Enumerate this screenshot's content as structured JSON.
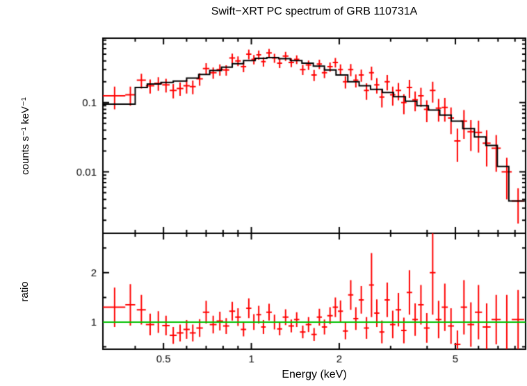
{
  "chart_data": {
    "type": "scatter",
    "title": "Swift−XRT PC spectrum of GRB 110731A",
    "xlabel": "Energy (keV)",
    "x_scale": "log",
    "x_range": [
      0.31,
      8.7
    ],
    "x_ticks": [
      {
        "value": 0.5,
        "label": "0.5"
      },
      {
        "value": 1,
        "label": "1"
      },
      {
        "value": 2,
        "label": "2"
      },
      {
        "value": 5,
        "label": "5"
      }
    ],
    "x_minor_ticks": [
      0.4,
      0.6,
      0.7,
      0.8,
      0.9,
      3,
      4,
      6,
      7,
      8
    ],
    "panels": {
      "spectrum": {
        "ylabel": "counts s⁻¹ keV⁻¹",
        "y_scale": "log",
        "y_range": [
          0.0013,
          0.85
        ],
        "y_ticks": [
          {
            "value": 0.1,
            "label": "0.1"
          },
          {
            "value": 0.01,
            "label": "0.01"
          }
        ]
      },
      "ratio": {
        "ylabel": "ratio",
        "y_scale": "linear",
        "y_range": [
          0.45,
          2.8
        ],
        "y_ticks": [
          {
            "value": 1,
            "label": "1"
          },
          {
            "value": 2,
            "label": "2"
          }
        ],
        "y_minor_ticks": [
          0.5,
          1.5,
          2.5
        ],
        "reference_line": 1
      }
    },
    "colors": {
      "data": "#ff0000",
      "model": "#000000",
      "reference_line": "#00c000",
      "frame": "#000000",
      "background": "#ffffff"
    },
    "model_steps": [
      [
        0.31,
        0.4,
        0.095
      ],
      [
        0.4,
        0.44,
        0.165
      ],
      [
        0.44,
        0.49,
        0.185
      ],
      [
        0.49,
        0.54,
        0.195
      ],
      [
        0.54,
        0.6,
        0.205
      ],
      [
        0.6,
        0.66,
        0.225
      ],
      [
        0.66,
        0.72,
        0.255
      ],
      [
        0.72,
        0.79,
        0.29
      ],
      [
        0.79,
        0.86,
        0.325
      ],
      [
        0.86,
        0.94,
        0.365
      ],
      [
        0.94,
        1.03,
        0.405
      ],
      [
        1.03,
        1.13,
        0.435
      ],
      [
        1.13,
        1.24,
        0.445
      ],
      [
        1.24,
        1.36,
        0.43
      ],
      [
        1.36,
        1.49,
        0.405
      ],
      [
        1.49,
        1.63,
        0.37
      ],
      [
        1.63,
        1.78,
        0.335
      ],
      [
        1.78,
        1.95,
        0.295
      ],
      [
        1.95,
        2.14,
        0.25
      ],
      [
        2.14,
        2.34,
        0.2
      ],
      [
        2.34,
        2.56,
        0.175
      ],
      [
        2.56,
        2.81,
        0.155
      ],
      [
        2.81,
        3.07,
        0.14
      ],
      [
        3.07,
        3.37,
        0.122
      ],
      [
        3.37,
        3.69,
        0.105
      ],
      [
        3.69,
        4.04,
        0.09
      ],
      [
        4.04,
        4.42,
        0.078
      ],
      [
        4.42,
        4.84,
        0.066
      ],
      [
        4.84,
        5.3,
        0.054
      ],
      [
        5.3,
        5.81,
        0.042
      ],
      [
        5.81,
        6.36,
        0.032
      ],
      [
        6.36,
        6.96,
        0.024
      ],
      [
        6.96,
        7.62,
        0.012
      ],
      [
        7.62,
        8.7,
        0.0038
      ]
    ],
    "spectrum_points": [
      [
        0.34,
        0.03,
        0.125,
        0.045
      ],
      [
        0.385,
        0.015,
        0.13,
        0.04
      ],
      [
        0.42,
        0.015,
        0.21,
        0.05
      ],
      [
        0.45,
        0.015,
        0.175,
        0.04
      ],
      [
        0.48,
        0.015,
        0.19,
        0.042
      ],
      [
        0.51,
        0.015,
        0.18,
        0.04
      ],
      [
        0.54,
        0.015,
        0.15,
        0.035
      ],
      [
        0.57,
        0.015,
        0.16,
        0.035
      ],
      [
        0.6,
        0.015,
        0.175,
        0.04
      ],
      [
        0.63,
        0.015,
        0.17,
        0.038
      ],
      [
        0.665,
        0.017,
        0.22,
        0.045
      ],
      [
        0.7,
        0.018,
        0.31,
        0.06
      ],
      [
        0.74,
        0.02,
        0.27,
        0.05
      ],
      [
        0.78,
        0.02,
        0.3,
        0.055
      ],
      [
        0.82,
        0.02,
        0.295,
        0.05
      ],
      [
        0.86,
        0.02,
        0.44,
        0.07
      ],
      [
        0.9,
        0.02,
        0.4,
        0.065
      ],
      [
        0.94,
        0.02,
        0.33,
        0.055
      ],
      [
        0.98,
        0.02,
        0.5,
        0.08
      ],
      [
        1.02,
        0.02,
        0.42,
        0.065
      ],
      [
        1.06,
        0.02,
        0.49,
        0.075
      ],
      [
        1.1,
        0.02,
        0.39,
        0.06
      ],
      [
        1.15,
        0.025,
        0.52,
        0.075
      ],
      [
        1.2,
        0.025,
        0.44,
        0.065
      ],
      [
        1.25,
        0.025,
        0.37,
        0.055
      ],
      [
        1.31,
        0.03,
        0.47,
        0.07
      ],
      [
        1.37,
        0.03,
        0.38,
        0.055
      ],
      [
        1.43,
        0.03,
        0.42,
        0.06
      ],
      [
        1.5,
        0.033,
        0.3,
        0.05
      ],
      [
        1.57,
        0.035,
        0.35,
        0.055
      ],
      [
        1.64,
        0.035,
        0.25,
        0.045
      ],
      [
        1.71,
        0.035,
        0.36,
        0.055
      ],
      [
        1.78,
        0.037,
        0.27,
        0.045
      ],
      [
        1.86,
        0.04,
        0.33,
        0.05
      ],
      [
        1.94,
        0.04,
        0.38,
        0.06
      ],
      [
        2.02,
        0.04,
        0.3,
        0.055
      ],
      [
        2.1,
        0.042,
        0.2,
        0.04
      ],
      [
        2.19,
        0.045,
        0.3,
        0.06
      ],
      [
        2.28,
        0.045,
        0.21,
        0.045
      ],
      [
        2.38,
        0.048,
        0.25,
        0.05
      ],
      [
        2.48,
        0.05,
        0.15,
        0.04
      ],
      [
        2.58,
        0.05,
        0.27,
        0.06
      ],
      [
        2.69,
        0.055,
        0.18,
        0.045
      ],
      [
        2.8,
        0.055,
        0.12,
        0.035
      ],
      [
        2.92,
        0.06,
        0.2,
        0.05
      ],
      [
        3.05,
        0.065,
        0.13,
        0.04
      ],
      [
        3.19,
        0.07,
        0.15,
        0.042
      ],
      [
        3.33,
        0.07,
        0.1,
        0.032
      ],
      [
        3.48,
        0.075,
        0.165,
        0.048
      ],
      [
        3.64,
        0.08,
        0.11,
        0.035
      ],
      [
        3.81,
        0.085,
        0.125,
        0.038
      ],
      [
        3.99,
        0.09,
        0.08,
        0.028
      ],
      [
        4.18,
        0.095,
        0.15,
        0.05
      ],
      [
        4.38,
        0.1,
        0.083,
        0.03
      ],
      [
        4.6,
        0.11,
        0.085,
        0.032
      ],
      [
        4.83,
        0.115,
        0.06,
        0.025
      ],
      [
        5.08,
        0.125,
        0.028,
        0.014
      ],
      [
        5.35,
        0.135,
        0.054,
        0.024
      ],
      [
        5.65,
        0.15,
        0.038,
        0.018
      ],
      [
        6.0,
        0.17,
        0.037,
        0.018
      ],
      [
        6.4,
        0.2,
        0.026,
        0.014
      ],
      [
        6.9,
        0.25,
        0.022,
        0.012
      ],
      [
        7.5,
        0.3,
        0.01,
        0.006
      ],
      [
        8.2,
        0.4,
        0.0038,
        0.002
      ]
    ],
    "ratio_points": [
      [
        0.34,
        0.03,
        1.3,
        0.4
      ],
      [
        0.385,
        0.015,
        1.35,
        0.42
      ],
      [
        0.42,
        0.015,
        1.25,
        0.3
      ],
      [
        0.45,
        0.015,
        0.95,
        0.22
      ],
      [
        0.48,
        0.015,
        1.0,
        0.22
      ],
      [
        0.51,
        0.015,
        0.93,
        0.2
      ],
      [
        0.54,
        0.015,
        0.73,
        0.17
      ],
      [
        0.57,
        0.015,
        0.78,
        0.17
      ],
      [
        0.6,
        0.015,
        0.85,
        0.19
      ],
      [
        0.63,
        0.015,
        0.78,
        0.17
      ],
      [
        0.665,
        0.017,
        0.88,
        0.18
      ],
      [
        0.7,
        0.018,
        1.2,
        0.23
      ],
      [
        0.74,
        0.02,
        0.95,
        0.18
      ],
      [
        0.78,
        0.02,
        1.02,
        0.19
      ],
      [
        0.82,
        0.02,
        0.92,
        0.16
      ],
      [
        0.86,
        0.02,
        1.22,
        0.19
      ],
      [
        0.9,
        0.02,
        1.1,
        0.18
      ],
      [
        0.94,
        0.02,
        0.85,
        0.14
      ],
      [
        0.98,
        0.02,
        1.28,
        0.2
      ],
      [
        1.02,
        0.02,
        1.0,
        0.16
      ],
      [
        1.06,
        0.02,
        1.15,
        0.18
      ],
      [
        1.1,
        0.02,
        0.9,
        0.14
      ],
      [
        1.15,
        0.025,
        1.2,
        0.17
      ],
      [
        1.2,
        0.025,
        1.0,
        0.15
      ],
      [
        1.25,
        0.025,
        0.86,
        0.13
      ],
      [
        1.31,
        0.03,
        1.1,
        0.16
      ],
      [
        1.37,
        0.03,
        0.92,
        0.13
      ],
      [
        1.43,
        0.03,
        1.05,
        0.15
      ],
      [
        1.5,
        0.033,
        0.8,
        0.13
      ],
      [
        1.57,
        0.035,
        0.95,
        0.15
      ],
      [
        1.64,
        0.035,
        0.75,
        0.13
      ],
      [
        1.71,
        0.035,
        1.1,
        0.17
      ],
      [
        1.78,
        0.037,
        0.9,
        0.15
      ],
      [
        1.86,
        0.04,
        1.13,
        0.17
      ],
      [
        1.94,
        0.04,
        1.3,
        0.2
      ],
      [
        2.02,
        0.04,
        1.22,
        0.22
      ],
      [
        2.1,
        0.042,
        0.82,
        0.17
      ],
      [
        2.19,
        0.045,
        1.55,
        0.3
      ],
      [
        2.28,
        0.045,
        1.07,
        0.23
      ],
      [
        2.38,
        0.048,
        1.45,
        0.28
      ],
      [
        2.48,
        0.05,
        0.88,
        0.22
      ],
      [
        2.58,
        0.05,
        1.75,
        0.65
      ],
      [
        2.69,
        0.055,
        1.18,
        0.28
      ],
      [
        2.8,
        0.055,
        0.8,
        0.23
      ],
      [
        2.92,
        0.06,
        1.45,
        0.35
      ],
      [
        3.05,
        0.065,
        0.95,
        0.28
      ],
      [
        3.19,
        0.07,
        1.25,
        0.34
      ],
      [
        3.33,
        0.07,
        0.83,
        0.26
      ],
      [
        3.48,
        0.075,
        1.6,
        0.45
      ],
      [
        3.64,
        0.08,
        1.05,
        0.33
      ],
      [
        3.81,
        0.085,
        1.35,
        0.4
      ],
      [
        3.99,
        0.09,
        0.88,
        0.3
      ],
      [
        4.18,
        0.095,
        2.0,
        0.85
      ],
      [
        4.38,
        0.1,
        1.05,
        0.38
      ],
      [
        4.6,
        0.11,
        1.3,
        0.48
      ],
      [
        4.83,
        0.115,
        0.92,
        0.36
      ],
      [
        5.08,
        0.125,
        0.55,
        0.28
      ],
      [
        5.35,
        0.135,
        1.3,
        0.55
      ],
      [
        5.65,
        0.15,
        0.95,
        0.45
      ],
      [
        6.0,
        0.17,
        1.2,
        0.55
      ],
      [
        6.4,
        0.2,
        0.9,
        0.48
      ],
      [
        6.9,
        0.25,
        1.05,
        0.5
      ],
      [
        7.5,
        0.3,
        1.0,
        0.55
      ],
      [
        8.2,
        0.4,
        1.05,
        0.6
      ]
    ]
  }
}
